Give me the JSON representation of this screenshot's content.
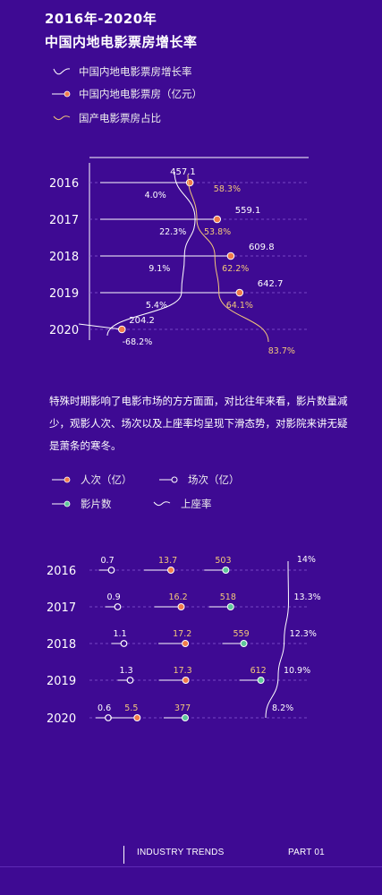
{
  "header": {
    "title_line1": "2016年-2020年",
    "title_line2": "中国内地电影票房增长率"
  },
  "legend1": [
    {
      "key": "growth",
      "label": "中国内地电影票房增长率",
      "icon": "wave-line"
    },
    {
      "key": "box",
      "label": "中国内地电影票房（亿元）",
      "icon": "dot-line"
    },
    {
      "key": "share",
      "label": "国产电影票房占比",
      "icon": "wave-line"
    }
  ],
  "paragraph": "特殊时期影响了电影市场的方方面面，对比往年来看，影片数量减少，观影人次、场次以及上座率均呈现下滑态势，对影院来讲无疑是萧条的寒冬。",
  "legend2": [
    {
      "key": "audience",
      "label": "人次（亿）",
      "icon": "orange-dot"
    },
    {
      "key": "sessions",
      "label": "场次（亿）",
      "icon": "hollow-dot"
    },
    {
      "key": "films",
      "label": "影片数",
      "icon": "green-dot"
    },
    {
      "key": "occupancy",
      "label": "上座率",
      "icon": "wave-line"
    }
  ],
  "chart_data": [
    {
      "type": "line",
      "categories": [
        "2016",
        "2017",
        "2018",
        "2019",
        "2020"
      ],
      "series": [
        {
          "name": "中国内地电影票房（亿元）",
          "values": [
            457.1,
            559.1,
            609.8,
            642.7,
            204.2
          ],
          "labels": [
            "457.1",
            "559.1",
            "609.8",
            "642.7",
            "204.2"
          ]
        },
        {
          "name": "中国内地电影票房增长率",
          "values": [
            4.0,
            22.3,
            9.1,
            5.4,
            -68.2
          ],
          "labels": [
            "4.0%",
            "22.3%",
            "9.1%",
            "5.4%",
            "-68.2%"
          ]
        },
        {
          "name": "国产电影票房占比",
          "values": [
            58.3,
            53.8,
            62.2,
            64.1,
            83.7
          ],
          "labels": [
            "58.3%",
            "53.8%",
            "62.2%",
            "64.1%",
            "83.7%"
          ]
        }
      ]
    },
    {
      "type": "line",
      "categories": [
        "2016",
        "2017",
        "2018",
        "2019",
        "2020"
      ],
      "series": [
        {
          "name": "场次（亿）",
          "values": [
            0.7,
            0.9,
            1.1,
            1.3,
            0.6
          ],
          "labels": [
            "0.7",
            "0.9",
            "1.1",
            "1.3",
            "0.6"
          ]
        },
        {
          "name": "人次（亿）",
          "values": [
            13.7,
            16.2,
            17.2,
            17.3,
            5.5
          ],
          "labels": [
            "13.7",
            "16.2",
            "17.2",
            "17.3",
            "5.5"
          ]
        },
        {
          "name": "影片数",
          "values": [
            503,
            518,
            559,
            612,
            377
          ],
          "labels": [
            "503",
            "518",
            "559",
            "612",
            "377"
          ]
        },
        {
          "name": "上座率",
          "values": [
            14,
            13.3,
            12.3,
            10.9,
            8.2
          ],
          "labels": [
            "14%",
            "13.3%",
            "12.3%",
            "10.9%",
            "8.2%"
          ]
        }
      ]
    }
  ],
  "colors": {
    "background": "#3e0a93",
    "orange": "#f07a4a",
    "green": "#5fc79a",
    "gold": "#f3c77a",
    "white": "#ffffff"
  },
  "footer": {
    "left": "INDUSTRY TRENDS",
    "right": "PART 01"
  }
}
